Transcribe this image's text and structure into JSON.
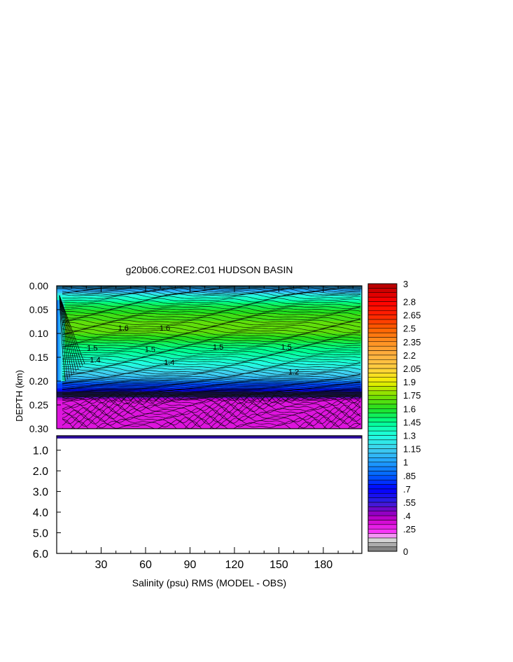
{
  "chart_data": {
    "type": "heatmap",
    "title": "g20b06.CORE2.C01 HUDSON BASIN",
    "xlabel": "Salinity (psu) RMS (MODEL - OBS)",
    "ylabel": "DEPTH (km)",
    "x_ticks": [
      30,
      60,
      90,
      120,
      150,
      180
    ],
    "xlim": [
      0,
      206
    ],
    "upper_panel": {
      "ylim": [
        0.0,
        0.3
      ],
      "y_tick_labels": [
        "0.00",
        "0.05",
        "0.10",
        "0.15",
        "0.20",
        "0.25",
        "0.30"
      ],
      "y_ticks": [
        0.0,
        0.05,
        0.1,
        0.15,
        0.2,
        0.25,
        0.3
      ]
    },
    "lower_panel": {
      "ylim": [
        0.3,
        6.0
      ],
      "y_tick_labels": [
        "1.0",
        "2.0",
        "3.0",
        "4.0",
        "5.0",
        "6.0"
      ],
      "y_ticks": [
        1.0,
        2.0,
        3.0,
        4.0,
        5.0,
        6.0
      ]
    },
    "depth_profile": [
      {
        "depth": 0.0,
        "value": 1.0
      },
      {
        "depth": 0.01,
        "value": 1.05
      },
      {
        "depth": 0.02,
        "value": 1.3
      },
      {
        "depth": 0.04,
        "value": 1.55
      },
      {
        "depth": 0.06,
        "value": 1.65
      },
      {
        "depth": 0.08,
        "value": 1.72
      },
      {
        "depth": 0.1,
        "value": 1.7
      },
      {
        "depth": 0.12,
        "value": 1.55
      },
      {
        "depth": 0.14,
        "value": 1.45
      },
      {
        "depth": 0.16,
        "value": 1.35
      },
      {
        "depth": 0.18,
        "value": 1.2
      },
      {
        "depth": 0.195,
        "value": 1.1
      },
      {
        "depth": 0.205,
        "value": 0.85
      },
      {
        "depth": 0.215,
        "value": 0.8
      },
      {
        "depth": 0.222,
        "value": 0.7
      },
      {
        "depth": 0.232,
        "value": 0.55
      },
      {
        "depth": 0.24,
        "value": 0.35
      },
      {
        "depth": 0.26,
        "value": 0.32
      },
      {
        "depth": 0.28,
        "value": 0.3
      },
      {
        "depth": 0.3,
        "value": 0.32
      }
    ],
    "contour_labels": [
      {
        "text": "1.5",
        "x": 24,
        "depth": 0.13
      },
      {
        "text": "1.5",
        "x": 63,
        "depth": 0.133
      },
      {
        "text": "1.5",
        "x": 109,
        "depth": 0.128
      },
      {
        "text": "1.5",
        "x": 155,
        "depth": 0.128
      },
      {
        "text": "1.6",
        "x": 45,
        "depth": 0.088
      },
      {
        "text": "1.6",
        "x": 73,
        "depth": 0.088
      },
      {
        "text": "1.4",
        "x": 26,
        "depth": 0.155
      },
      {
        "text": "1.4",
        "x": 76,
        "depth": 0.16
      },
      {
        "text": "1.2",
        "x": 160,
        "depth": 0.18
      }
    ],
    "colorbar": {
      "min": 0,
      "max": 3,
      "step": 0.05,
      "tick_labels": [
        "3",
        "2.8",
        "2.65",
        "2.5",
        "2.35",
        "2.2",
        "2.05",
        "1.9",
        "1.75",
        "1.6",
        "1.45",
        "1.3",
        "1.15",
        "1",
        ".85",
        ".7",
        ".55",
        ".4",
        ".25",
        "0"
      ],
      "tick_values": [
        3,
        2.8,
        2.65,
        2.5,
        2.35,
        2.2,
        2.05,
        1.9,
        1.75,
        1.6,
        1.45,
        1.3,
        1.15,
        1,
        0.85,
        0.7,
        0.55,
        0.4,
        0.25,
        0
      ],
      "color_stops": [
        {
          "v": 0.0,
          "c": "#707070"
        },
        {
          "v": 0.15,
          "c": "#e8e8e8"
        },
        {
          "v": 0.2,
          "c": "#ff40ff"
        },
        {
          "v": 0.35,
          "c": "#cc00cc"
        },
        {
          "v": 0.45,
          "c": "#8000c0"
        },
        {
          "v": 0.55,
          "c": "#3020e0"
        },
        {
          "v": 0.7,
          "c": "#0000ff"
        },
        {
          "v": 0.85,
          "c": "#0060ff"
        },
        {
          "v": 1.0,
          "c": "#20a0ff"
        },
        {
          "v": 1.15,
          "c": "#40d0f0"
        },
        {
          "v": 1.3,
          "c": "#20ffe0"
        },
        {
          "v": 1.45,
          "c": "#00ff90"
        },
        {
          "v": 1.6,
          "c": "#20e020"
        },
        {
          "v": 1.75,
          "c": "#80e000"
        },
        {
          "v": 1.9,
          "c": "#f0f000"
        },
        {
          "v": 2.05,
          "c": "#ffd040"
        },
        {
          "v": 2.2,
          "c": "#ffb040"
        },
        {
          "v": 2.35,
          "c": "#ff9020"
        },
        {
          "v": 2.5,
          "c": "#ff6000"
        },
        {
          "v": 2.65,
          "c": "#ff2000"
        },
        {
          "v": 2.8,
          "c": "#ff0000"
        },
        {
          "v": 3.0,
          "c": "#b00000"
        }
      ]
    }
  }
}
